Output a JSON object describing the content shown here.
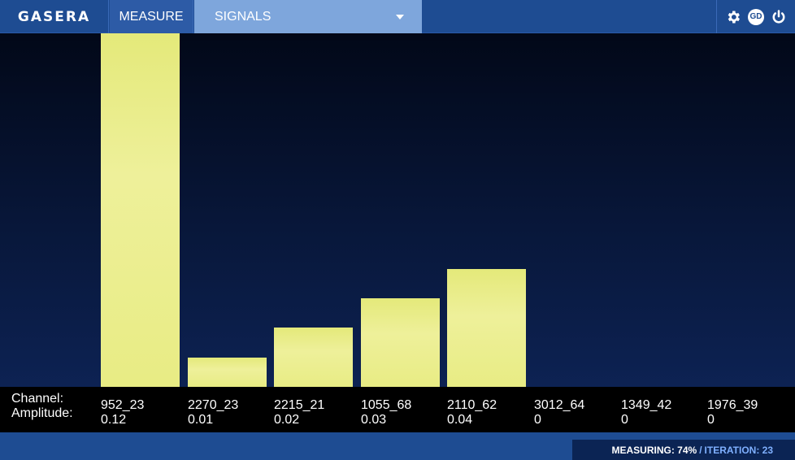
{
  "header": {
    "logo": "GASERA",
    "tab_measure": "MEASURE",
    "signals_select": "SIGNALS",
    "icons": [
      "gear-icon",
      "gd-icon",
      "power-icon"
    ],
    "gd_label": "GD"
  },
  "labels": {
    "channel": "Channel:",
    "amplitude": "Amplitude:"
  },
  "chart_data": {
    "type": "bar",
    "categories": [
      "952_23",
      "2270_23",
      "2215_21",
      "1055_68",
      "2110_62",
      "3012_64",
      "1349_42",
      "1976_39"
    ],
    "values": [
      0.12,
      0.01,
      0.02,
      0.03,
      0.04,
      0,
      0,
      0
    ],
    "value_labels": [
      "0.12",
      "0.01",
      "0.02",
      "0.03",
      "0.04",
      "0",
      "0",
      "0"
    ],
    "ylim": [
      0,
      0.12
    ],
    "bar_color": "#e8ec84",
    "grid": false
  },
  "status": {
    "measuring": "MEASURING: 74%",
    "separator": "/",
    "iteration": "ITERATION: 23",
    "progress_percent": 74,
    "iteration_count": 23
  },
  "colors": {
    "header_bg": "#1e4c92",
    "select_bg": "#7ea6dc",
    "bar": "#e8ec84",
    "status_accent": "#7fb0ff"
  }
}
